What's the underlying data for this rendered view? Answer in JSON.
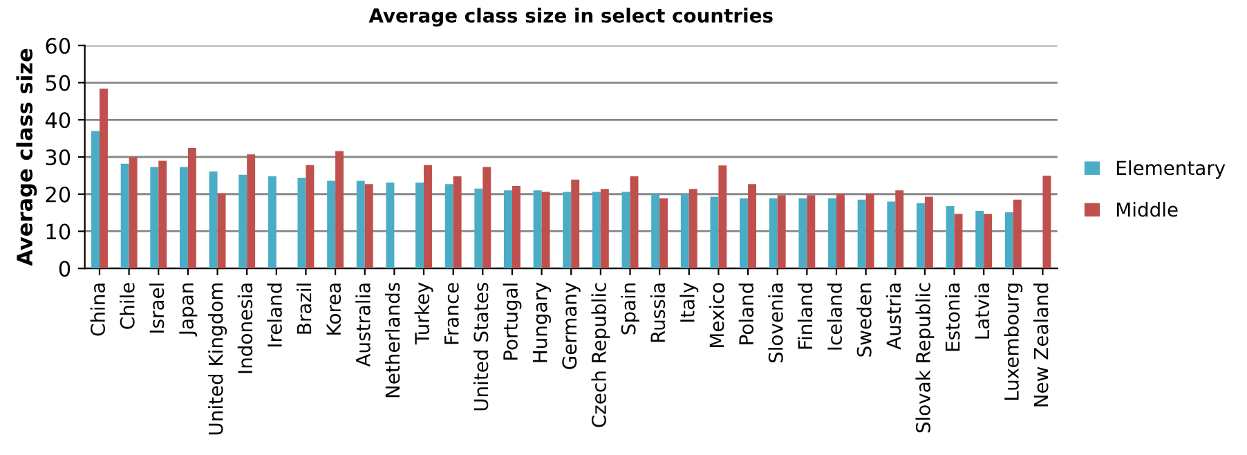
{
  "chart_data": {
    "type": "bar",
    "title": "Average class size in select countries",
    "ylabel": "Average class size",
    "categories": [
      "China",
      "Chile",
      "Israel",
      "Japan",
      "United Kingdom",
      "Indonesia",
      "Ireland",
      "Brazil",
      "Korea",
      "Australia",
      "Netherlands",
      "Turkey",
      "France",
      "United States",
      "Portugal",
      "Hungary",
      "Germany",
      "Czech Republic",
      "Spain",
      "Russia",
      "Italy",
      "Mexico",
      "Poland",
      "Slovenia",
      "Finland",
      "Iceland",
      "Sweden",
      "Austria",
      "Slovak Republic",
      "Estonia",
      "Latvia",
      "Luxembourg",
      "New Zealand"
    ],
    "series": [
      {
        "name": "Elementary",
        "color": "#4bacc6",
        "values": [
          37.0,
          28.2,
          27.3,
          27.3,
          26.1,
          25.2,
          24.8,
          24.4,
          23.6,
          23.6,
          23.1,
          23.1,
          22.7,
          21.5,
          21.0,
          21.0,
          20.6,
          20.6,
          20.6,
          20.0,
          20.0,
          19.3,
          18.9,
          18.9,
          18.9,
          18.9,
          18.5,
          18.0,
          17.6,
          16.8,
          15.5,
          15.1,
          null
        ]
      },
      {
        "name": "Middle",
        "color": "#c0504d",
        "values": [
          48.4,
          29.9,
          29.0,
          32.4,
          20.2,
          30.7,
          null,
          27.8,
          31.6,
          22.7,
          null,
          27.8,
          24.8,
          27.3,
          22.2,
          20.6,
          23.9,
          21.4,
          24.8,
          18.9,
          21.4,
          27.7,
          22.7,
          19.7,
          19.7,
          20.1,
          20.1,
          21.0,
          19.3,
          14.7,
          14.7,
          18.5,
          25.0
        ]
      }
    ],
    "ylim": [
      0,
      60
    ],
    "yticks": [
      0,
      10,
      20,
      30,
      40,
      50,
      60
    ],
    "grid": "y",
    "legend": "right"
  }
}
